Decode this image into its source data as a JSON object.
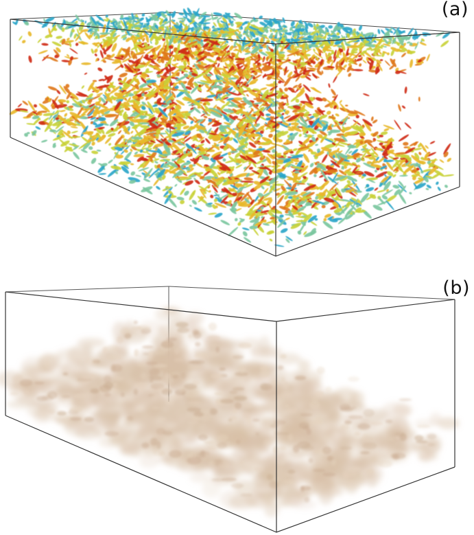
{
  "figure": {
    "panels": [
      {
        "id": "a",
        "label": "(a)",
        "content": "vortex-isosurfaces",
        "colormap": [
          "#2aa6c9",
          "#7cc7a0",
          "#c9d23a",
          "#e8b92a",
          "#e07a1d",
          "#cf2a14"
        ]
      },
      {
        "id": "b",
        "label": "(b)",
        "content": "scalar-volume-rendering",
        "color": "#d8c0a8"
      }
    ],
    "box_edge_color": "#333333"
  }
}
